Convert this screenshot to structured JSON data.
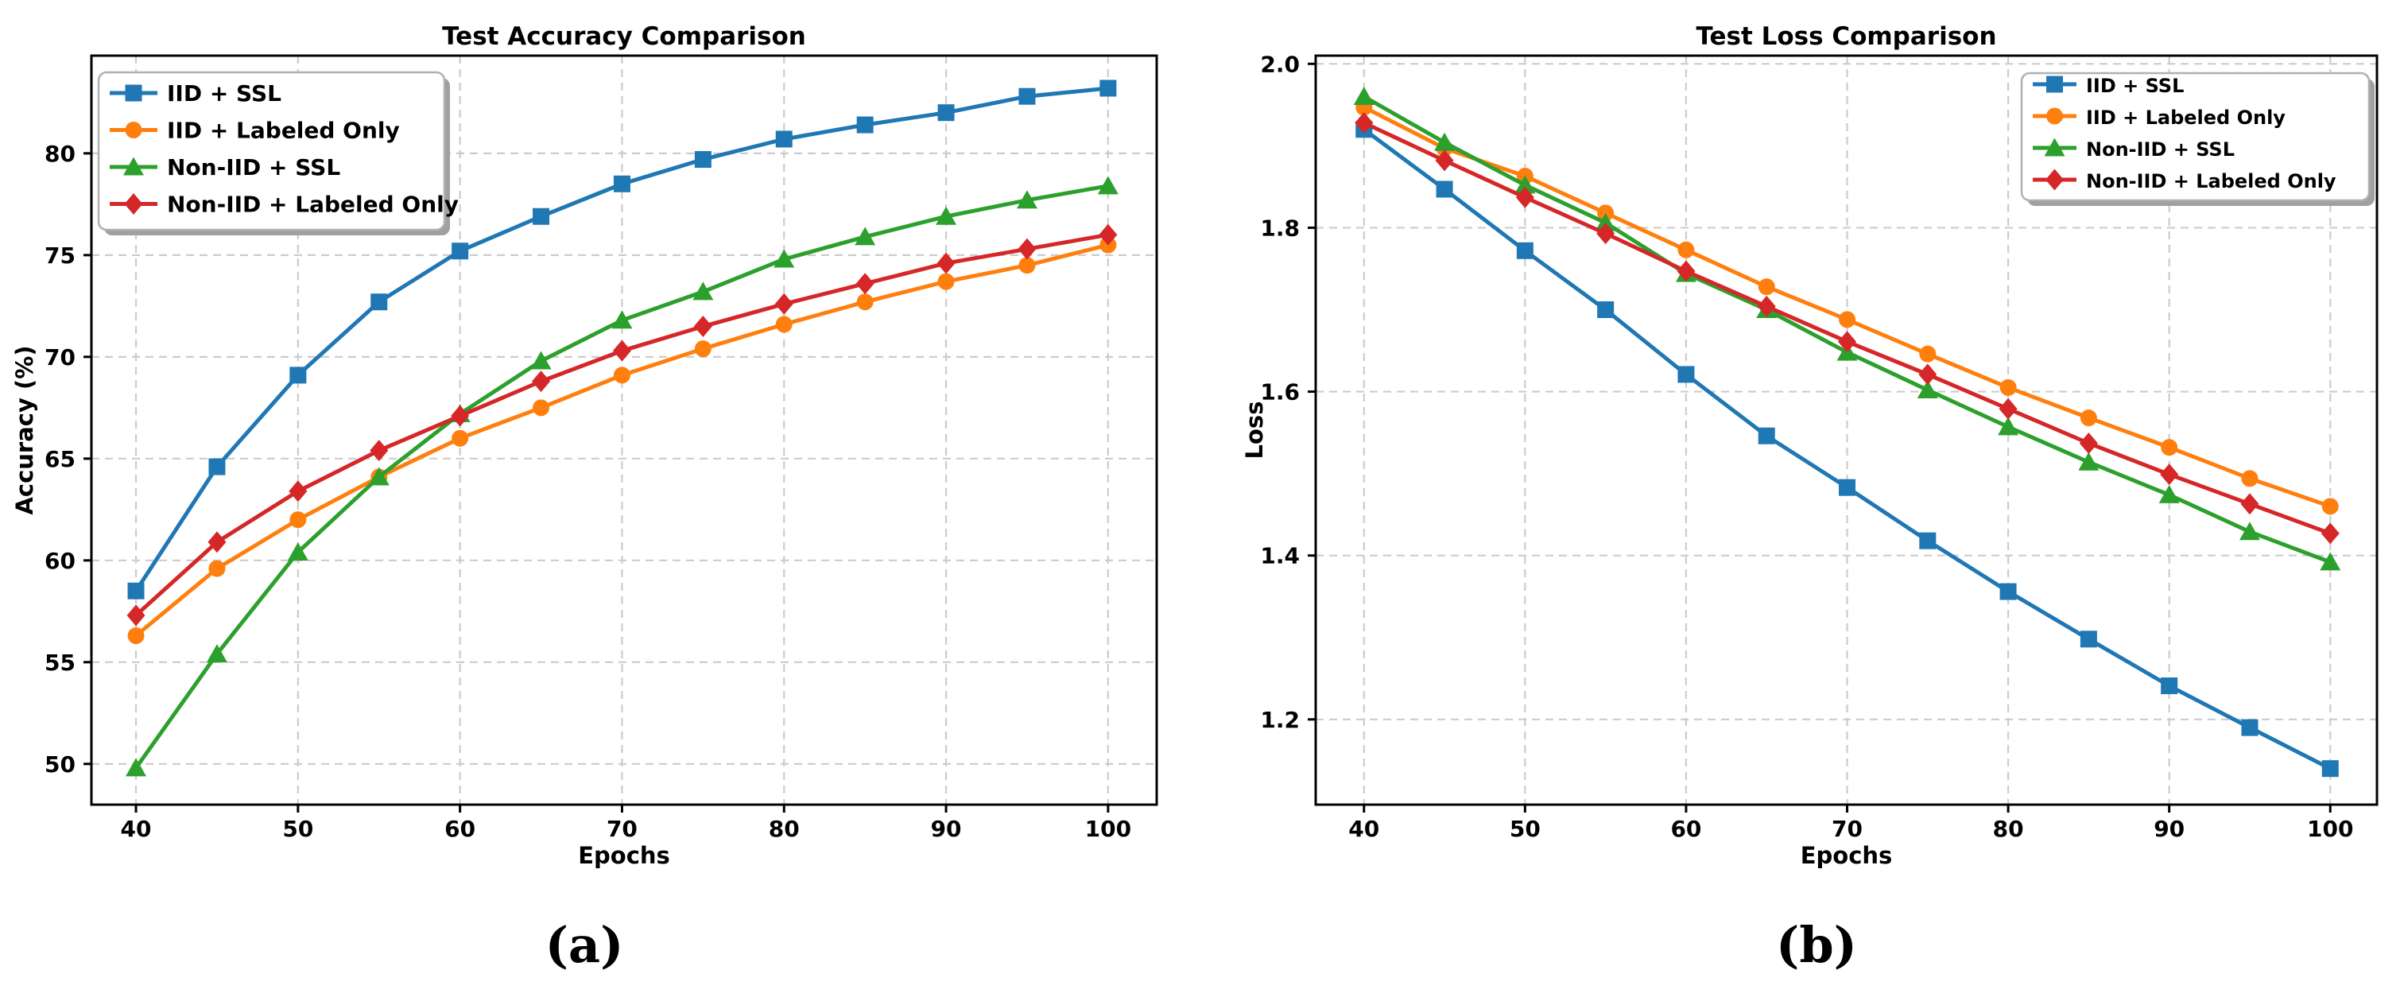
{
  "page": {
    "background": "#ffffff"
  },
  "chart_data": [
    {
      "type": "line",
      "title": "Test Accuracy Comparison",
      "xlabel": "Epochs",
      "ylabel": "Accuracy (%)",
      "caption": "(a)",
      "x": [
        40,
        45,
        50,
        55,
        60,
        65,
        70,
        75,
        80,
        85,
        90,
        95,
        100
      ],
      "xlim": [
        37.25,
        103.0
      ],
      "ylim": [
        48.0,
        84.8
      ],
      "xticks": [
        40,
        50,
        60,
        70,
        80,
        90,
        100
      ],
      "xticklabels": [
        "40",
        "50",
        "60",
        "70",
        "80",
        "90",
        "100"
      ],
      "yticks": [
        50,
        55,
        60,
        65,
        70,
        75,
        80
      ],
      "yticklabels": [
        "50",
        "55",
        "60",
        "65",
        "70",
        "75",
        "80"
      ],
      "grid": true,
      "legend_position": "upper left",
      "series": [
        {
          "name": "IID + SSL",
          "color": "#1f77b4",
          "marker": "square",
          "values": [
            58.5,
            64.6,
            69.1,
            72.7,
            75.2,
            76.9,
            78.5,
            79.7,
            80.7,
            81.4,
            82.0,
            82.8,
            83.2
          ]
        },
        {
          "name": "IID + Labeled Only",
          "color": "#ff7f0e",
          "marker": "circle",
          "values": [
            56.3,
            59.6,
            62.0,
            64.1,
            66.0,
            67.5,
            69.1,
            70.4,
            71.6,
            72.7,
            73.7,
            74.5,
            75.5
          ]
        },
        {
          "name": "Non-IID + SSL",
          "color": "#2ca02c",
          "marker": "triangle",
          "values": [
            49.8,
            55.4,
            60.4,
            64.1,
            67.2,
            69.8,
            71.8,
            73.2,
            74.8,
            75.9,
            76.9,
            77.7,
            78.4
          ]
        },
        {
          "name": "Non-IID + Labeled Only",
          "color": "#d62728",
          "marker": "diamond",
          "values": [
            57.3,
            60.9,
            63.4,
            65.4,
            67.1,
            68.8,
            70.3,
            71.5,
            72.6,
            73.6,
            74.6,
            75.3,
            76.0
          ]
        }
      ]
    },
    {
      "type": "line",
      "title": "Test Loss Comparison",
      "xlabel": "Epochs",
      "ylabel": "Loss",
      "caption": "(b)",
      "x": [
        40,
        45,
        50,
        55,
        60,
        65,
        70,
        75,
        80,
        85,
        90,
        95,
        100
      ],
      "xlim": [
        37.0,
        102.9
      ],
      "ylim": [
        1.096,
        2.01
      ],
      "xticks": [
        40,
        50,
        60,
        70,
        80,
        90,
        100
      ],
      "xticklabels": [
        "40",
        "50",
        "60",
        "70",
        "80",
        "90",
        "100"
      ],
      "yticks": [
        1.2,
        1.4,
        1.6,
        1.8,
        2.0
      ],
      "yticklabels": [
        "1.2",
        "1.4",
        "1.6",
        "1.8",
        "2.0"
      ],
      "grid": true,
      "legend_position": "upper right",
      "series": [
        {
          "name": "IID + SSL",
          "color": "#1f77b4",
          "marker": "square",
          "values": [
            1.92,
            1.847,
            1.772,
            1.7,
            1.621,
            1.546,
            1.483,
            1.418,
            1.356,
            1.298,
            1.241,
            1.19,
            1.14
          ]
        },
        {
          "name": "IID + Labeled Only",
          "color": "#ff7f0e",
          "marker": "circle",
          "values": [
            1.947,
            1.897,
            1.863,
            1.818,
            1.773,
            1.728,
            1.688,
            1.646,
            1.605,
            1.568,
            1.532,
            1.494,
            1.46
          ]
        },
        {
          "name": "Non-IID + SSL",
          "color": "#2ca02c",
          "marker": "triangle",
          "values": [
            1.96,
            1.904,
            1.852,
            1.806,
            1.744,
            1.7,
            1.648,
            1.602,
            1.557,
            1.514,
            1.474,
            1.429,
            1.392
          ]
        },
        {
          "name": "Non-IID + Labeled Only",
          "color": "#d62728",
          "marker": "diamond",
          "values": [
            1.928,
            1.882,
            1.837,
            1.793,
            1.747,
            1.704,
            1.661,
            1.621,
            1.579,
            1.537,
            1.499,
            1.463,
            1.427
          ]
        }
      ]
    }
  ]
}
